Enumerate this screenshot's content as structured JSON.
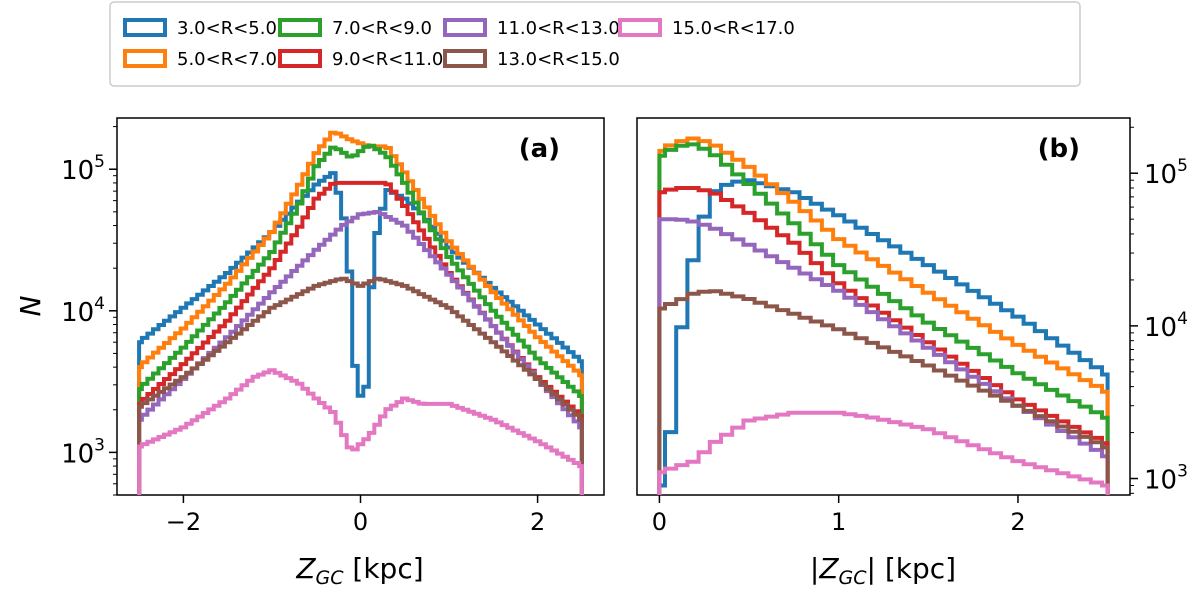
{
  "legend": {
    "entries": [
      {
        "label": "3.0<R<5.0",
        "color": "#1f77b4"
      },
      {
        "label": "5.0<R<7.0",
        "color": "#ff7f0e"
      },
      {
        "label": "7.0<R<9.0",
        "color": "#2ca02c"
      },
      {
        "label": "9.0<R<11.0",
        "color": "#d62728"
      },
      {
        "label": "11.0<R<13.0",
        "color": "#9467bd"
      },
      {
        "label": "13.0<R<15.0",
        "color": "#8c564b"
      },
      {
        "label": "15.0<R<17.0",
        "color": "#e377c2"
      }
    ],
    "placement": "top-center"
  },
  "chart_data": [
    {
      "type": "line",
      "style": "step",
      "panel_label": "(a)",
      "xlabel_main": "Z",
      "xlabel_sub": "GC",
      "xlabel_unit": " [kpc]",
      "ylabel": "N",
      "xlim": [
        -2.75,
        2.75
      ],
      "ylim": [
        500,
        230000
      ],
      "yscale": "log",
      "x_ticks": [
        -2,
        0,
        2
      ],
      "x_tick_labels": [
        "−2",
        "0",
        "2"
      ],
      "y_ticks": [
        1000,
        10000,
        100000
      ],
      "y_tick_base": "10",
      "y_tick_exponents": [
        "3",
        "4",
        "5"
      ],
      "y_tick_side": "left",
      "series": [
        {
          "name": "3.0<R<5.0",
          "x": [
            -2.5,
            -2,
            -1.5,
            -1,
            -0.7,
            -0.5,
            -0.3,
            -0.15,
            -0.05,
            0.05,
            0.15,
            0.3,
            0.5,
            0.7,
            1,
            1.5,
            2,
            2.5
          ],
          "y": [
            6000,
            10500,
            18500,
            36000,
            58000,
            78000,
            95000,
            35000,
            3000,
            2100,
            28000,
            72000,
            62000,
            48000,
            28000,
            14500,
            8000,
            4400
          ]
        },
        {
          "name": "5.0<R<7.0",
          "x": [
            -2.5,
            -2,
            -1.5,
            -1,
            -0.7,
            -0.5,
            -0.3,
            -0.1,
            0.1,
            0.3,
            0.5,
            0.7,
            1,
            1.5,
            2,
            2.5
          ],
          "y": [
            4000,
            7500,
            15500,
            36000,
            75000,
            130000,
            185000,
            160000,
            145000,
            145000,
            95000,
            60000,
            31000,
            13500,
            6500,
            3500
          ]
        },
        {
          "name": "7.0<R<9.0",
          "x": [
            -2.5,
            -2,
            -1.5,
            -1,
            -0.7,
            -0.5,
            -0.3,
            -0.1,
            0.1,
            0.3,
            0.5,
            0.7,
            1,
            1.5,
            2,
            2.5
          ],
          "y": [
            2800,
            5500,
            11500,
            26000,
            55000,
            105000,
            145000,
            120000,
            150000,
            125000,
            80000,
            48000,
            24000,
            10000,
            4600,
            2500
          ]
        },
        {
          "name": "9.0<R<11.0",
          "x": [
            -2.5,
            -2,
            -1.5,
            -1,
            -0.7,
            -0.5,
            -0.3,
            -0.1,
            0.1,
            0.3,
            0.5,
            0.7,
            1,
            1.5,
            2,
            2.5
          ],
          "y": [
            2200,
            4200,
            8500,
            20000,
            38000,
            62000,
            80000,
            80000,
            80000,
            80000,
            55000,
            36000,
            18500,
            7800,
            3400,
            1800
          ]
        },
        {
          "name": "11.0<R<13.0",
          "x": [
            -2.5,
            -2,
            -1.5,
            -1,
            -0.5,
            -0.2,
            0,
            0.2,
            0.5,
            1,
            1.5,
            2,
            2.5
          ],
          "y": [
            1700,
            3300,
            6500,
            13500,
            27000,
            40000,
            48000,
            50000,
            40000,
            18000,
            7800,
            3300,
            1500
          ]
        },
        {
          "name": "13.0<R<15.0",
          "x": [
            -2.5,
            -2,
            -1.5,
            -1,
            -0.5,
            -0.2,
            0,
            0.2,
            0.5,
            1,
            1.5,
            2,
            2.5
          ],
          "y": [
            2100,
            3400,
            6000,
            10500,
            15000,
            17000,
            15000,
            17000,
            15000,
            10500,
            6000,
            3300,
            1700
          ]
        },
        {
          "name": "15.0<R<17.0",
          "x": [
            -2.5,
            -2,
            -1.5,
            -1.2,
            -1,
            -0.7,
            -0.5,
            -0.3,
            -0.1,
            0.1,
            0.3,
            0.5,
            0.7,
            1,
            1.5,
            2,
            2.5
          ],
          "y": [
            1100,
            1500,
            2400,
            3400,
            3800,
            3100,
            2400,
            1900,
            1000,
            1300,
            2000,
            2400,
            2200,
            2200,
            1700,
            1200,
            800
          ]
        }
      ]
    },
    {
      "type": "line",
      "style": "step",
      "panel_label": "(b)",
      "xlabel_main": "|Z",
      "xlabel_sub": "GC",
      "xlabel_unit": "| [kpc]",
      "ylabel": "",
      "xlim": [
        -0.125,
        2.625
      ],
      "ylim": [
        780,
        230000
      ],
      "yscale": "log",
      "x_ticks": [
        0,
        1,
        2
      ],
      "x_tick_labels": [
        "0",
        "1",
        "2"
      ],
      "y_ticks": [
        1000,
        10000,
        100000
      ],
      "y_tick_base": "10",
      "y_tick_exponents": [
        "3",
        "4",
        "5"
      ],
      "y_tick_side": "right",
      "series": [
        {
          "name": "3.0<R<5.0",
          "x": [
            0,
            0.05,
            0.1,
            0.15,
            0.2,
            0.25,
            0.3,
            0.4,
            0.5,
            0.75,
            1,
            1.5,
            2,
            2.5
          ],
          "y": [
            900,
            1400,
            6000,
            16000,
            32000,
            52000,
            75000,
            87000,
            90000,
            75000,
            53000,
            25000,
            11500,
            4800
          ]
        },
        {
          "name": "5.0<R<7.0",
          "x": [
            0,
            0.1,
            0.2,
            0.3,
            0.5,
            0.75,
            1,
            1.5,
            2,
            2.5
          ],
          "y": [
            140000,
            160000,
            170000,
            155000,
            110000,
            65000,
            37000,
            16500,
            7500,
            3700
          ]
        },
        {
          "name": "7.0<R<9.0",
          "x": [
            0,
            0.1,
            0.2,
            0.3,
            0.5,
            0.75,
            1,
            1.5,
            2,
            2.5
          ],
          "y": [
            130000,
            150000,
            155000,
            135000,
            85000,
            47000,
            25000,
            10500,
            4900,
            2500
          ]
        },
        {
          "name": "9.0<R<11.0",
          "x": [
            0,
            0.1,
            0.2,
            0.3,
            0.5,
            0.75,
            1,
            1.5,
            2,
            2.5
          ],
          "y": [
            75000,
            80000,
            80000,
            75000,
            55000,
            35000,
            19000,
            7800,
            3300,
            1700
          ]
        },
        {
          "name": "11.0<R<13.0",
          "x": [
            0,
            0.1,
            0.2,
            0.3,
            0.5,
            0.75,
            1,
            1.5,
            2,
            2.5
          ],
          "y": [
            50000,
            50000,
            48000,
            44000,
            34000,
            24000,
            17000,
            7200,
            3000,
            1400
          ]
        },
        {
          "name": "13.0<R<15.0",
          "x": [
            0,
            0.1,
            0.2,
            0.3,
            0.5,
            0.75,
            1,
            1.5,
            2,
            2.5
          ],
          "y": [
            13000,
            14500,
            16500,
            17000,
            15000,
            12000,
            9500,
            5500,
            3000,
            1600
          ]
        },
        {
          "name": "15.0<R<17.0",
          "x": [
            0,
            0.1,
            0.2,
            0.3,
            0.5,
            0.75,
            1,
            1.2,
            1.5,
            2,
            2.5
          ],
          "y": [
            1100,
            1200,
            1300,
            1700,
            2400,
            2700,
            2700,
            2500,
            2100,
            1300,
            900
          ]
        }
      ]
    }
  ]
}
